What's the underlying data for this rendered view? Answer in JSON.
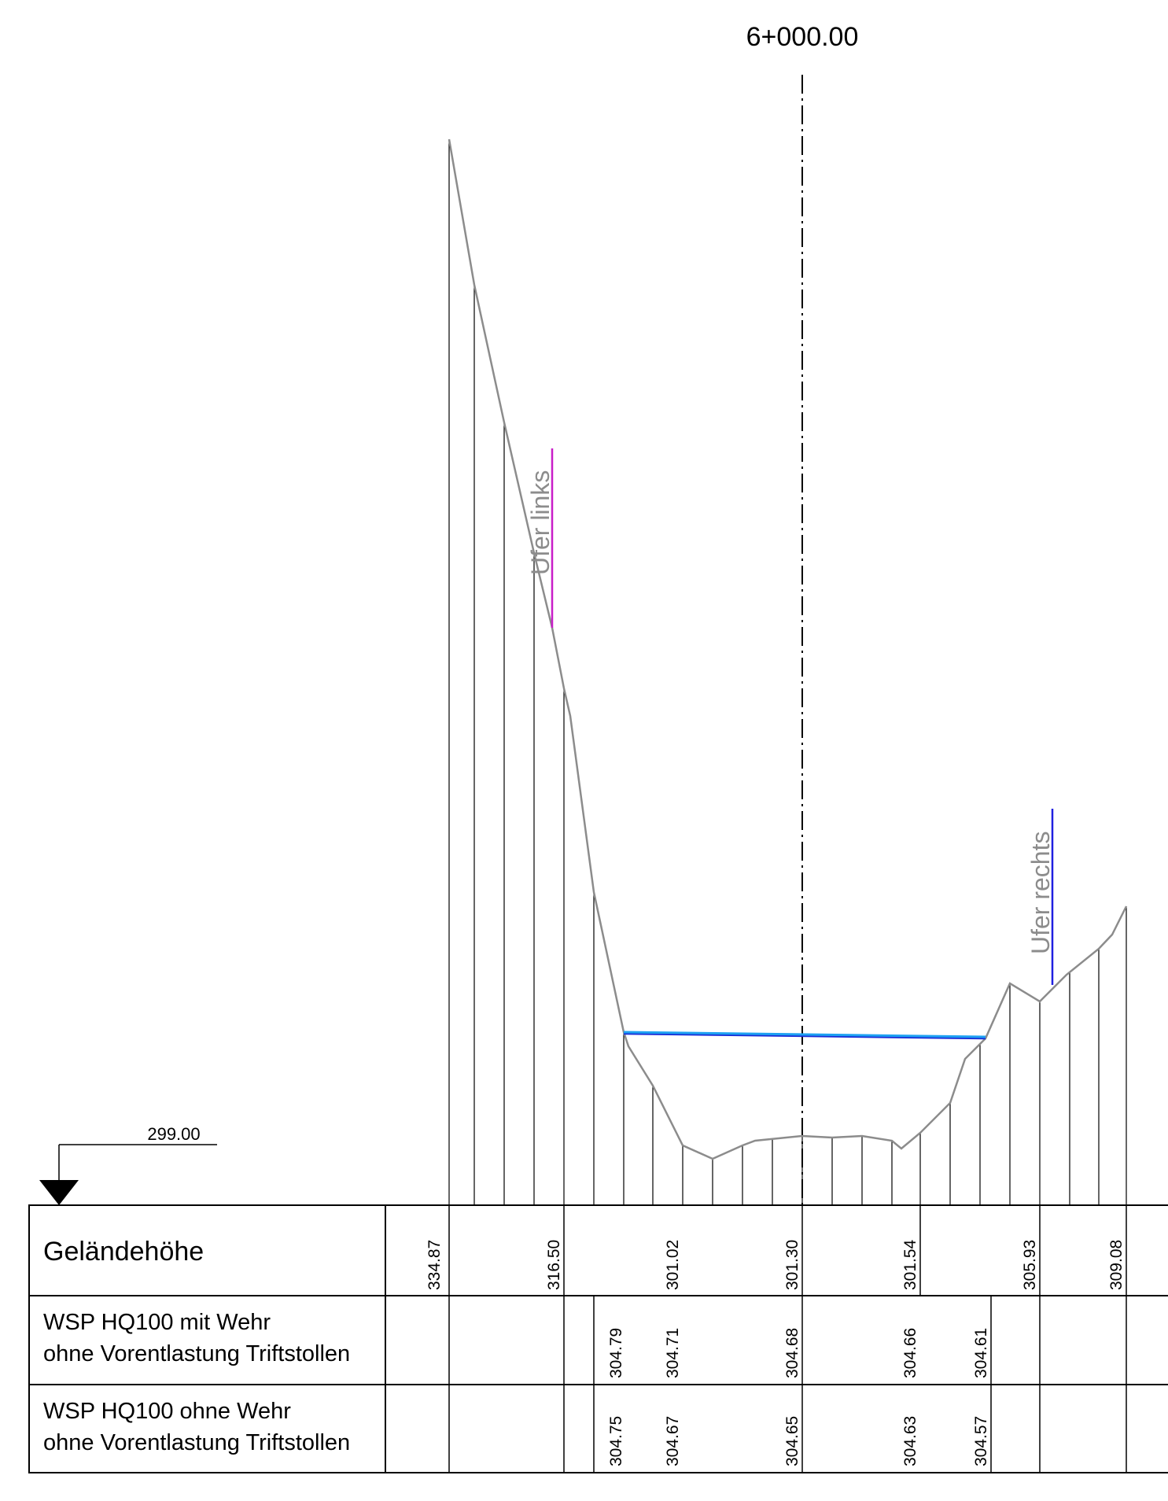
{
  "station": "6+000.00",
  "reference_level": "299.00",
  "bank_labels": {
    "left": "Ufer links",
    "right": "Ufer rechts"
  },
  "colors": {
    "terrain": "#8c8c8c",
    "water_main": "#1da1f2",
    "water_secondary": "#1a2bd6",
    "bank_left": "#c81ec8",
    "bank_right": "#2020e0",
    "lines": "#000000"
  },
  "table": {
    "rows": [
      {
        "label_lines": [
          "Geländehöhe"
        ],
        "values": [
          "334.87",
          "316.50",
          "301.02",
          "301.30",
          "301.54",
          "305.93",
          "309.08"
        ]
      },
      {
        "label_lines": [
          "WSP HQ100 mit Wehr",
          "ohne Vorentlastung Triftstollen"
        ],
        "values": [
          "304.79",
          "304.71",
          "304.68",
          "304.66",
          "304.61"
        ]
      },
      {
        "label_lines": [
          "WSP HQ100 ohne Wehr",
          "ohne Vorentlastung Triftstollen"
        ],
        "values": [
          "304.75",
          "304.67",
          "304.65",
          "304.63",
          "304.57"
        ]
      }
    ]
  }
}
